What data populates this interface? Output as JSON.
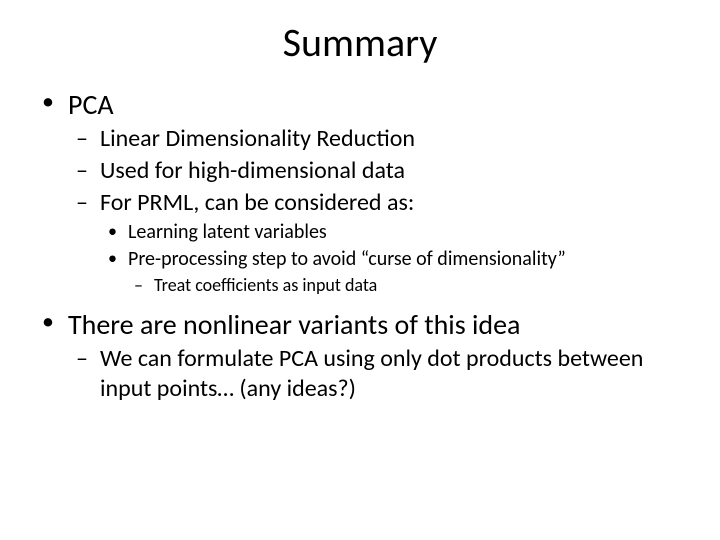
{
  "title": "Summary",
  "colors": {
    "background": "#ffffff",
    "text": "#000000"
  },
  "typography": {
    "font_family": "Calibri",
    "title_fontsize": 40,
    "lvl1_fontsize": 28,
    "lvl2_fontsize": 24,
    "lvl3_fontsize": 20,
    "lvl4_fontsize": 18
  },
  "bullets": {
    "lvl1": [
      {
        "text": "PCA",
        "lvl2": [
          {
            "text": "Linear Dimensionality Reduction"
          },
          {
            "text": "Used for high-dimensional data"
          },
          {
            "text": "For PRML, can be considered as:",
            "lvl3": [
              {
                "text": "Learning latent variables"
              },
              {
                "text": "Pre-processing step to avoid “curse of dimensionality”",
                "lvl4": [
                  {
                    "text": "Treat coefficients as input data"
                  }
                ]
              }
            ]
          }
        ]
      },
      {
        "text": "There are nonlinear variants of this idea",
        "lvl2": [
          {
            "text": "We can formulate PCA using only dot products between input points… (any ideas?)"
          }
        ]
      }
    ]
  }
}
